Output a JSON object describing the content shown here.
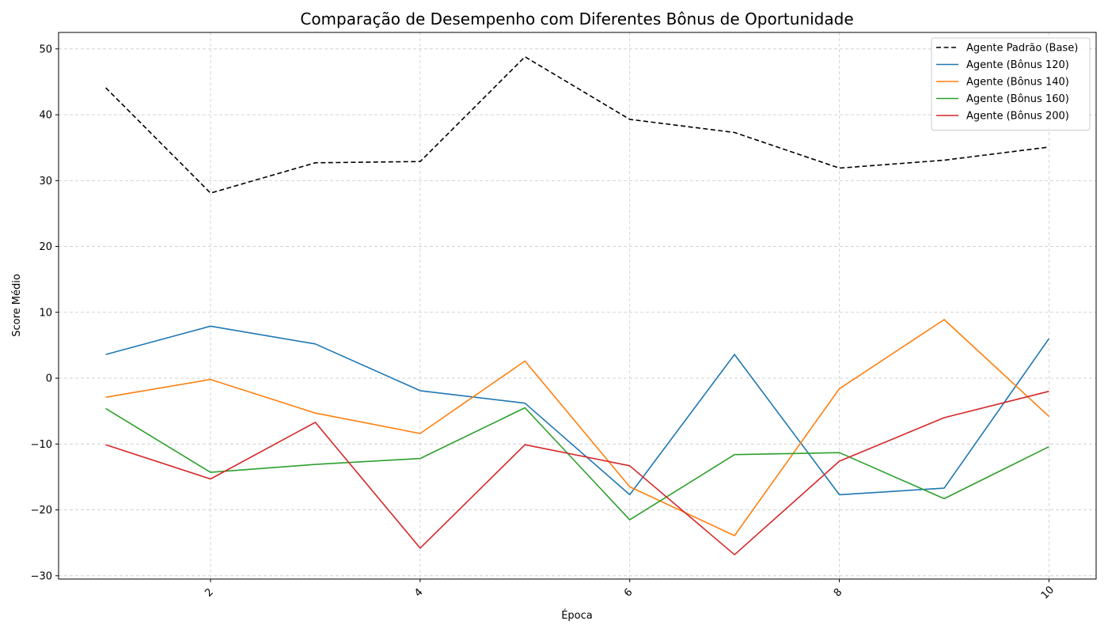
{
  "chart_data": {
    "type": "line",
    "title": "Comparação de Desempenho com Diferentes Bônus de Oportunidade",
    "xlabel": "Época",
    "ylabel": "Score Médio",
    "x": [
      1,
      2,
      3,
      4,
      5,
      6,
      7,
      8,
      9,
      10
    ],
    "xlim": [
      0.55,
      10.45
    ],
    "ylim": [
      -30.5,
      52.5
    ],
    "x_ticks": [
      2,
      4,
      6,
      8,
      10
    ],
    "x_tick_labels": [
      "2",
      "4",
      "6",
      "8",
      "10"
    ],
    "y_ticks": [
      -30,
      -20,
      -10,
      0,
      10,
      20,
      30,
      40,
      50
    ],
    "y_tick_labels": [
      "−30",
      "−20",
      "−10",
      "0",
      "10",
      "20",
      "30",
      "40",
      "50"
    ],
    "grid": true,
    "legend_position": "top-right",
    "series": [
      {
        "name": "Agente Padrão (Base)",
        "color": "#000000",
        "style": "dashed",
        "values": [
          44.1,
          28.1,
          32.7,
          32.9,
          48.8,
          39.3,
          37.3,
          31.9,
          33.1,
          35.1
        ]
      },
      {
        "name": "Agente (Bônus 120)",
        "color": "#1f77b4",
        "style": "solid",
        "values": [
          3.6,
          7.9,
          5.2,
          -1.9,
          -3.8,
          -17.7,
          3.6,
          -17.7,
          -16.7,
          6.0
        ]
      },
      {
        "name": "Agente (Bônus 140)",
        "color": "#ff7f0e",
        "style": "solid",
        "values": [
          -2.9,
          -0.2,
          -5.3,
          -8.4,
          2.6,
          -16.5,
          -23.9,
          -1.6,
          8.9,
          -5.8
        ]
      },
      {
        "name": "Agente (Bônus 160)",
        "color": "#2ca02c",
        "style": "solid",
        "values": [
          -4.6,
          -14.3,
          -13.1,
          -12.2,
          -4.5,
          -21.5,
          -11.6,
          -11.3,
          -18.3,
          -10.4
        ]
      },
      {
        "name": "Agente (Bônus 200)",
        "color": "#d62728",
        "style": "solid",
        "values": [
          -10.1,
          -15.3,
          -6.7,
          -25.8,
          -10.1,
          -13.3,
          -26.8,
          -12.6,
          -6.0,
          -2.0
        ]
      }
    ]
  }
}
